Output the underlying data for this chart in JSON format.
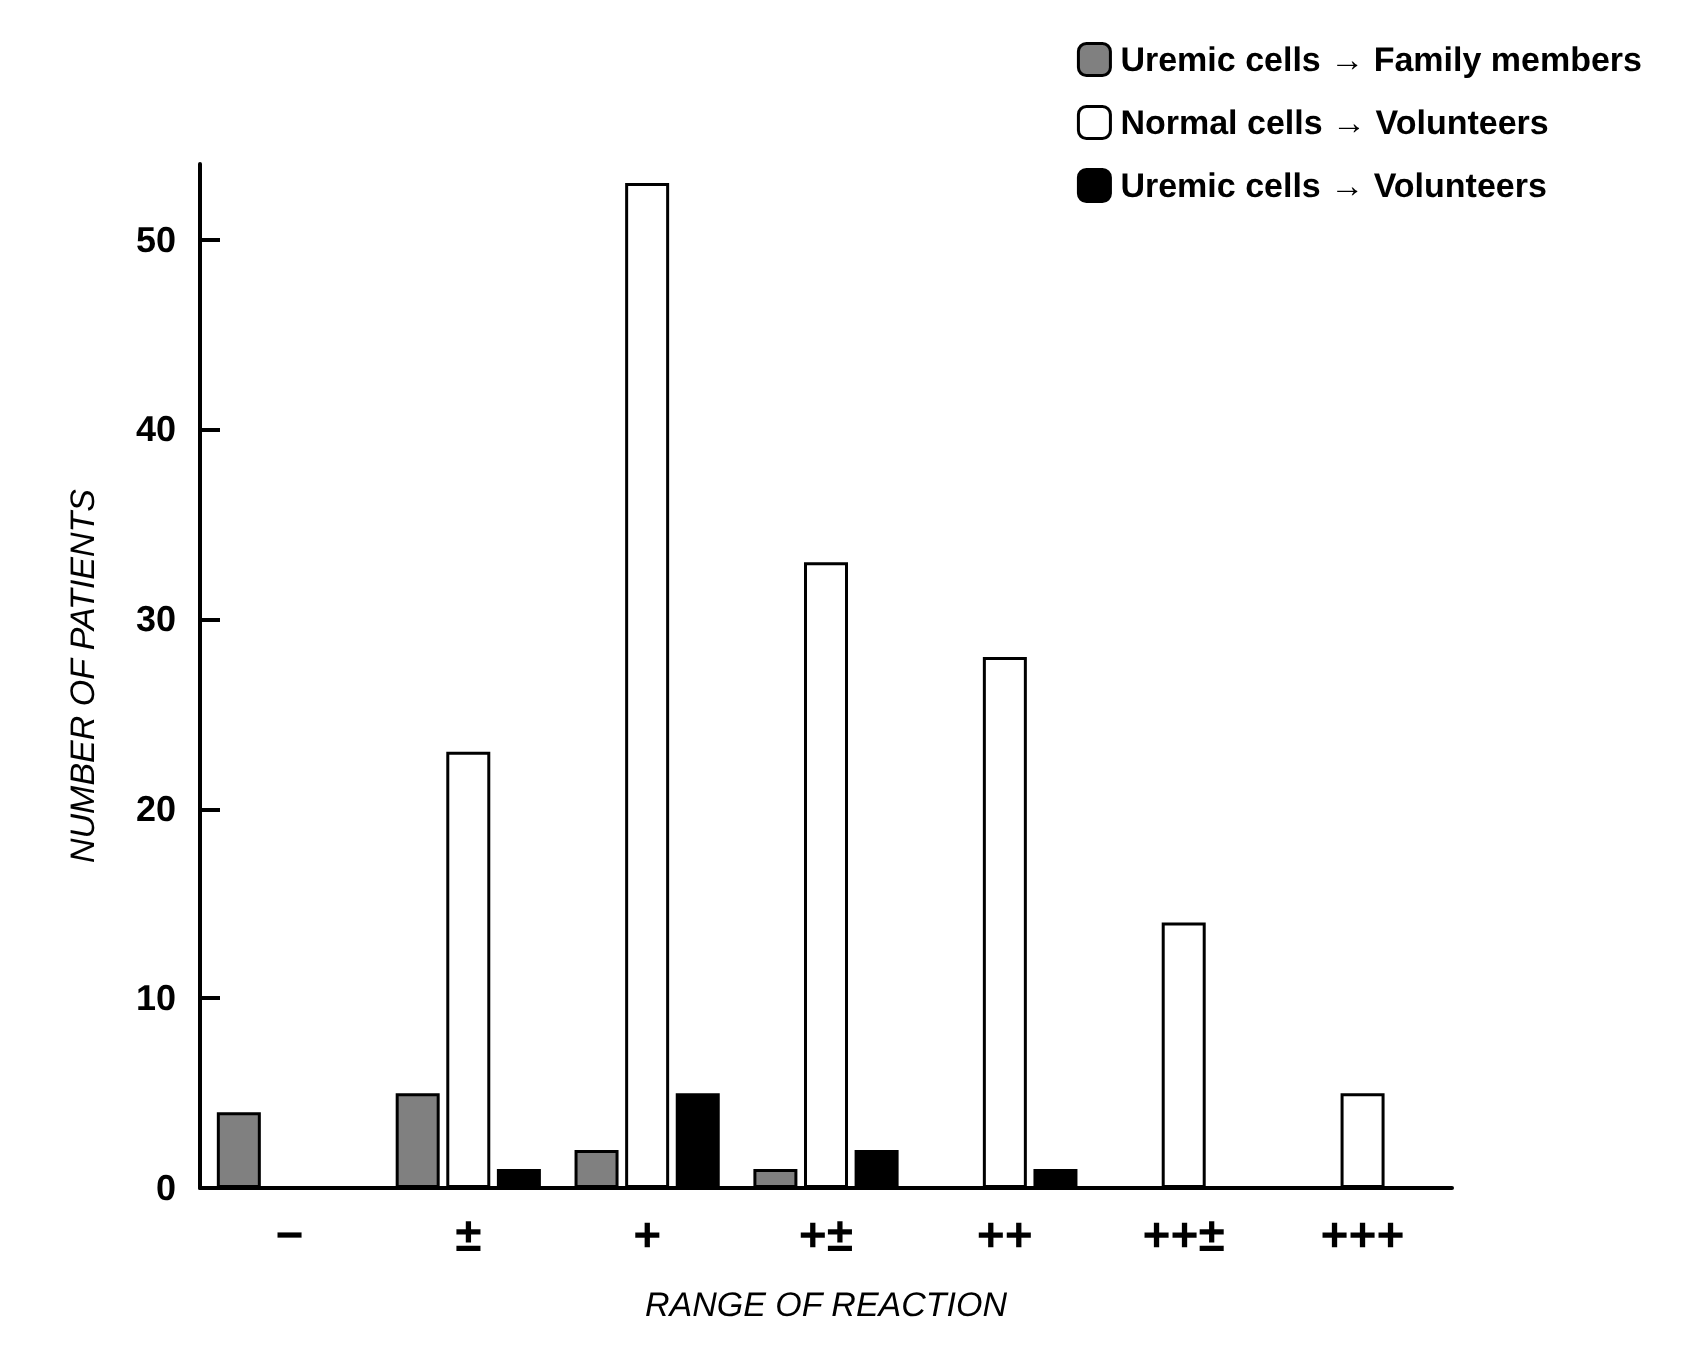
{
  "chart_data": {
    "type": "bar",
    "xlabel": "RANGE OF REACTION",
    "ylabel": "NUMBER OF PATIENTS",
    "categories": [
      "−",
      "±",
      "+",
      "+±",
      "++",
      "++±",
      "+++"
    ],
    "series": [
      {
        "name": "Uremic cells → Family members",
        "color": "#808080",
        "values": [
          4,
          5,
          2,
          1,
          null,
          null,
          null
        ]
      },
      {
        "name": "Normal cells → Volunteers",
        "color": "#ffffff",
        "values": [
          null,
          23,
          53,
          33,
          28,
          14,
          5
        ]
      },
      {
        "name": "Uremic cells → Volunteers",
        "color": "#000000",
        "values": [
          null,
          1,
          5,
          2,
          1,
          null,
          null
        ]
      }
    ],
    "ylim": [
      0,
      54
    ],
    "yticks": [
      0,
      10,
      20,
      30,
      40,
      50
    ],
    "grid": false,
    "legend": "top right"
  }
}
